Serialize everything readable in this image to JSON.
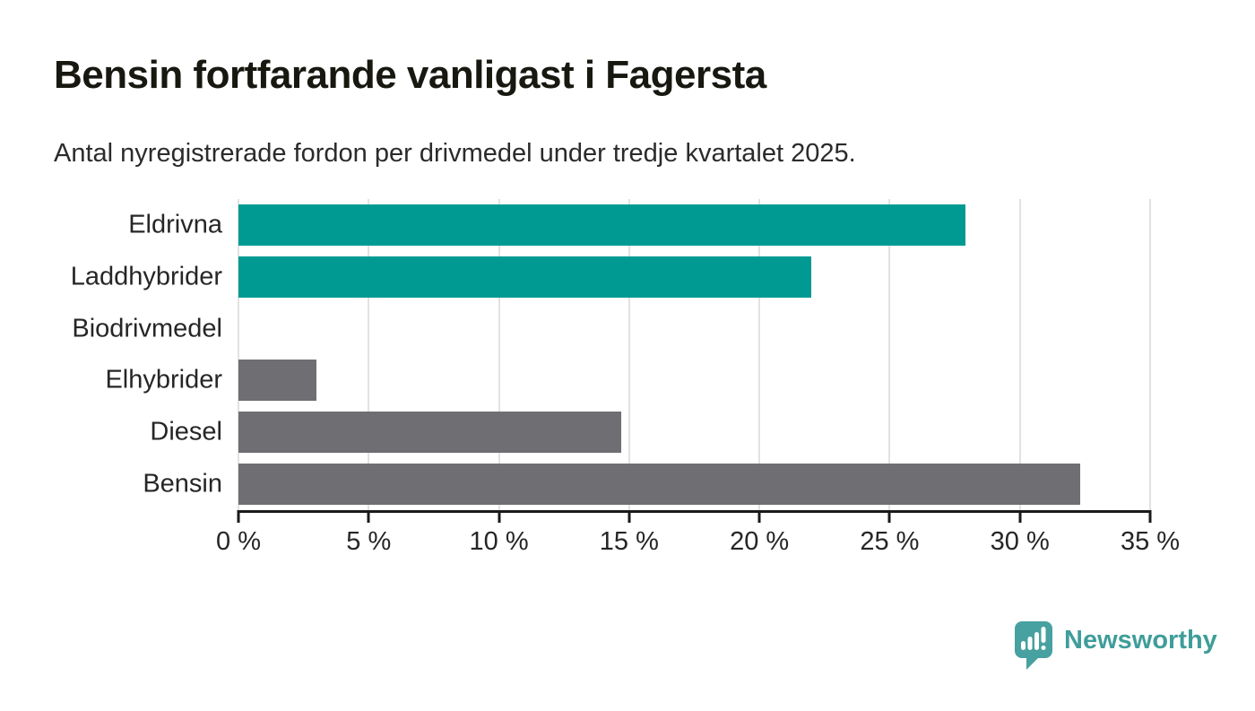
{
  "chart": {
    "title": "Bensin fortfarande vanligast i Fagersta",
    "subtitle": "Antal nyregistrerade fordon per drivmedel under tredje kvartalet 2025."
  },
  "chart_data": {
    "type": "bar",
    "orientation": "horizontal",
    "title": "Bensin fortfarande vanligast i Fagersta",
    "subtitle": "Antal nyregistrerade fordon per drivmedel under tredje kvartalet 2025.",
    "categories": [
      "Eldrivna",
      "Laddhybrider",
      "Biodrivmedel",
      "Elhybrider",
      "Diesel",
      "Bensin"
    ],
    "values": [
      27.9,
      22.0,
      0,
      3.0,
      14.7,
      32.3
    ],
    "unit": "%",
    "bar_colors": [
      "#009a93",
      "#009a93",
      "#6e6e73",
      "#6e6e73",
      "#6e6e73",
      "#6e6e73"
    ],
    "xlabel": "",
    "ylabel": "",
    "xlim": [
      0,
      35
    ],
    "xticks": [
      0,
      5,
      10,
      15,
      20,
      25,
      30,
      35
    ],
    "xtick_labels": [
      "0 %",
      "5 %",
      "10 %",
      "15 %",
      "20 %",
      "25 %",
      "30 %",
      "35 %"
    ],
    "grid": "vertical-gridlines",
    "legend": "none"
  },
  "branding": {
    "logo_text": "Newsworthy",
    "wordmark_color": "#3f9d9a",
    "icon_color": "#47a1a0",
    "icon_name": "newsworthy-speech-bubble-bar-chart-icon"
  },
  "colors": {
    "teal_bar": "#009a93",
    "gray_bar": "#6e6e73",
    "gridline": "#e2e2e2",
    "axis": "#1a1a1a",
    "title_text": "#181811",
    "body_text": "#262626",
    "background": "#ffffff"
  }
}
